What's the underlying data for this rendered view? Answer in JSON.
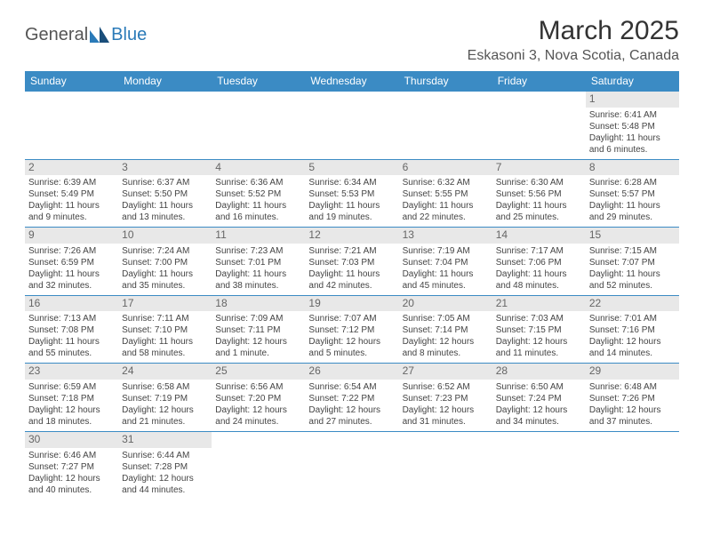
{
  "brand": {
    "part1": "General",
    "part2": "Blue"
  },
  "title": "March 2025",
  "location": "Eskasoni 3, Nova Scotia, Canada",
  "colors": {
    "header_bg": "#3b8bc4",
    "border": "#3b8bc4",
    "daynum_bg": "#e8e8e8"
  },
  "weekdays": [
    "Sunday",
    "Monday",
    "Tuesday",
    "Wednesday",
    "Thursday",
    "Friday",
    "Saturday"
  ],
  "weeks": [
    {
      "days": [
        null,
        null,
        null,
        null,
        null,
        null,
        {
          "n": "1",
          "sr": "Sunrise: 6:41 AM",
          "ss": "Sunset: 5:48 PM",
          "d1": "Daylight: 11 hours",
          "d2": "and 6 minutes."
        }
      ]
    },
    {
      "days": [
        {
          "n": "2",
          "sr": "Sunrise: 6:39 AM",
          "ss": "Sunset: 5:49 PM",
          "d1": "Daylight: 11 hours",
          "d2": "and 9 minutes."
        },
        {
          "n": "3",
          "sr": "Sunrise: 6:37 AM",
          "ss": "Sunset: 5:50 PM",
          "d1": "Daylight: 11 hours",
          "d2": "and 13 minutes."
        },
        {
          "n": "4",
          "sr": "Sunrise: 6:36 AM",
          "ss": "Sunset: 5:52 PM",
          "d1": "Daylight: 11 hours",
          "d2": "and 16 minutes."
        },
        {
          "n": "5",
          "sr": "Sunrise: 6:34 AM",
          "ss": "Sunset: 5:53 PM",
          "d1": "Daylight: 11 hours",
          "d2": "and 19 minutes."
        },
        {
          "n": "6",
          "sr": "Sunrise: 6:32 AM",
          "ss": "Sunset: 5:55 PM",
          "d1": "Daylight: 11 hours",
          "d2": "and 22 minutes."
        },
        {
          "n": "7",
          "sr": "Sunrise: 6:30 AM",
          "ss": "Sunset: 5:56 PM",
          "d1": "Daylight: 11 hours",
          "d2": "and 25 minutes."
        },
        {
          "n": "8",
          "sr": "Sunrise: 6:28 AM",
          "ss": "Sunset: 5:57 PM",
          "d1": "Daylight: 11 hours",
          "d2": "and 29 minutes."
        }
      ]
    },
    {
      "days": [
        {
          "n": "9",
          "sr": "Sunrise: 7:26 AM",
          "ss": "Sunset: 6:59 PM",
          "d1": "Daylight: 11 hours",
          "d2": "and 32 minutes."
        },
        {
          "n": "10",
          "sr": "Sunrise: 7:24 AM",
          "ss": "Sunset: 7:00 PM",
          "d1": "Daylight: 11 hours",
          "d2": "and 35 minutes."
        },
        {
          "n": "11",
          "sr": "Sunrise: 7:23 AM",
          "ss": "Sunset: 7:01 PM",
          "d1": "Daylight: 11 hours",
          "d2": "and 38 minutes."
        },
        {
          "n": "12",
          "sr": "Sunrise: 7:21 AM",
          "ss": "Sunset: 7:03 PM",
          "d1": "Daylight: 11 hours",
          "d2": "and 42 minutes."
        },
        {
          "n": "13",
          "sr": "Sunrise: 7:19 AM",
          "ss": "Sunset: 7:04 PM",
          "d1": "Daylight: 11 hours",
          "d2": "and 45 minutes."
        },
        {
          "n": "14",
          "sr": "Sunrise: 7:17 AM",
          "ss": "Sunset: 7:06 PM",
          "d1": "Daylight: 11 hours",
          "d2": "and 48 minutes."
        },
        {
          "n": "15",
          "sr": "Sunrise: 7:15 AM",
          "ss": "Sunset: 7:07 PM",
          "d1": "Daylight: 11 hours",
          "d2": "and 52 minutes."
        }
      ]
    },
    {
      "days": [
        {
          "n": "16",
          "sr": "Sunrise: 7:13 AM",
          "ss": "Sunset: 7:08 PM",
          "d1": "Daylight: 11 hours",
          "d2": "and 55 minutes."
        },
        {
          "n": "17",
          "sr": "Sunrise: 7:11 AM",
          "ss": "Sunset: 7:10 PM",
          "d1": "Daylight: 11 hours",
          "d2": "and 58 minutes."
        },
        {
          "n": "18",
          "sr": "Sunrise: 7:09 AM",
          "ss": "Sunset: 7:11 PM",
          "d1": "Daylight: 12 hours",
          "d2": "and 1 minute."
        },
        {
          "n": "19",
          "sr": "Sunrise: 7:07 AM",
          "ss": "Sunset: 7:12 PM",
          "d1": "Daylight: 12 hours",
          "d2": "and 5 minutes."
        },
        {
          "n": "20",
          "sr": "Sunrise: 7:05 AM",
          "ss": "Sunset: 7:14 PM",
          "d1": "Daylight: 12 hours",
          "d2": "and 8 minutes."
        },
        {
          "n": "21",
          "sr": "Sunrise: 7:03 AM",
          "ss": "Sunset: 7:15 PM",
          "d1": "Daylight: 12 hours",
          "d2": "and 11 minutes."
        },
        {
          "n": "22",
          "sr": "Sunrise: 7:01 AM",
          "ss": "Sunset: 7:16 PM",
          "d1": "Daylight: 12 hours",
          "d2": "and 14 minutes."
        }
      ]
    },
    {
      "days": [
        {
          "n": "23",
          "sr": "Sunrise: 6:59 AM",
          "ss": "Sunset: 7:18 PM",
          "d1": "Daylight: 12 hours",
          "d2": "and 18 minutes."
        },
        {
          "n": "24",
          "sr": "Sunrise: 6:58 AM",
          "ss": "Sunset: 7:19 PM",
          "d1": "Daylight: 12 hours",
          "d2": "and 21 minutes."
        },
        {
          "n": "25",
          "sr": "Sunrise: 6:56 AM",
          "ss": "Sunset: 7:20 PM",
          "d1": "Daylight: 12 hours",
          "d2": "and 24 minutes."
        },
        {
          "n": "26",
          "sr": "Sunrise: 6:54 AM",
          "ss": "Sunset: 7:22 PM",
          "d1": "Daylight: 12 hours",
          "d2": "and 27 minutes."
        },
        {
          "n": "27",
          "sr": "Sunrise: 6:52 AM",
          "ss": "Sunset: 7:23 PM",
          "d1": "Daylight: 12 hours",
          "d2": "and 31 minutes."
        },
        {
          "n": "28",
          "sr": "Sunrise: 6:50 AM",
          "ss": "Sunset: 7:24 PM",
          "d1": "Daylight: 12 hours",
          "d2": "and 34 minutes."
        },
        {
          "n": "29",
          "sr": "Sunrise: 6:48 AM",
          "ss": "Sunset: 7:26 PM",
          "d1": "Daylight: 12 hours",
          "d2": "and 37 minutes."
        }
      ]
    },
    {
      "days": [
        {
          "n": "30",
          "sr": "Sunrise: 6:46 AM",
          "ss": "Sunset: 7:27 PM",
          "d1": "Daylight: 12 hours",
          "d2": "and 40 minutes."
        },
        {
          "n": "31",
          "sr": "Sunrise: 6:44 AM",
          "ss": "Sunset: 7:28 PM",
          "d1": "Daylight: 12 hours",
          "d2": "and 44 minutes."
        },
        null,
        null,
        null,
        null,
        null
      ]
    }
  ]
}
